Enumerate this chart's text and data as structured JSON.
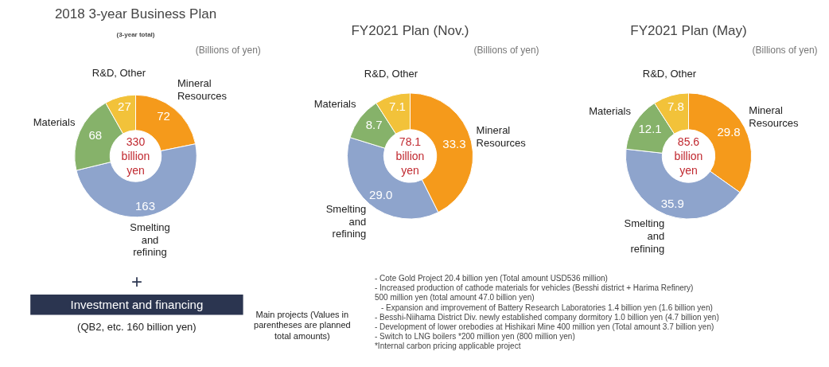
{
  "chart_data": [
    {
      "type": "donut",
      "title": "2018 3-year Business Plan",
      "subtitle": "(3-year total)",
      "legend_title": "(Billions of yen)",
      "categories": [
        "Mineral Resources",
        "Smelting and refining",
        "Materials",
        "R&D, Other"
      ],
      "values": [
        72,
        163,
        68,
        27
      ],
      "colors": [
        "#f59a1b",
        "#8ea4cc",
        "#86b26a",
        "#f2c23a"
      ],
      "data_labels": true,
      "annotations": [
        "330 billion yen",
        "+",
        "Investment and financing",
        "(QB2, etc. 160 billion yen)",
        "Main projects (Values in parentheses are planned total amounts)"
      ]
    },
    {
      "type": "donut",
      "title": "FY2021 Plan (Nov.)",
      "legend_title": "(Billions of yen)",
      "categories": [
        "Mineral Resources",
        "Smelting and refining",
        "Materials",
        "R&D, Other"
      ],
      "values": [
        33.3,
        29.0,
        8.7,
        7.1
      ],
      "value_labels": [
        "33.3",
        "29.0",
        "8.7",
        "7.1"
      ],
      "colors": [
        "#f59a1b",
        "#8ea4cc",
        "#86b26a",
        "#f2c23a"
      ],
      "annotations": [
        "78.1 billion yen",
        "- Cote Gold Project 20.4 billion yen (Total amount USD536 million)",
        "- Increased production of cathode materials for vehicles (Besshi district + Harima Refinery)",
        "500 million yen (total amount 47.0 billion yen)",
        "- Expansion and improvement of Battery Research Laboratories 1.4 billion yen (1.6 billion yen)",
        "- Besshi-Niihama District Div. newly established company dormitory 1.0 billion yen (4.7 billion yen)",
        "- Development of lower orebodies at Hishikari Mine 400 million yen (Total amount 3.7 billion yen)",
        "- Switch to LNG boilers *200 million yen (800 million yen)",
        "*Internal carbon pricing applicable project"
      ]
    },
    {
      "type": "donut",
      "title": "FY2021 Plan (May)",
      "legend_title": "(Billions of yen)",
      "categories": [
        "Mineral Resources",
        "Smelting and refining",
        "Materials",
        "R&D, Other"
      ],
      "values": [
        29.8,
        35.9,
        12.1,
        7.8
      ],
      "colors": [
        "#f59a1b",
        "#8ea4cc",
        "#86b26a",
        "#f2c23a"
      ],
      "data_labels": true,
      "annotations": [
        "85.6 billion yen"
      ]
    }
  ]
}
